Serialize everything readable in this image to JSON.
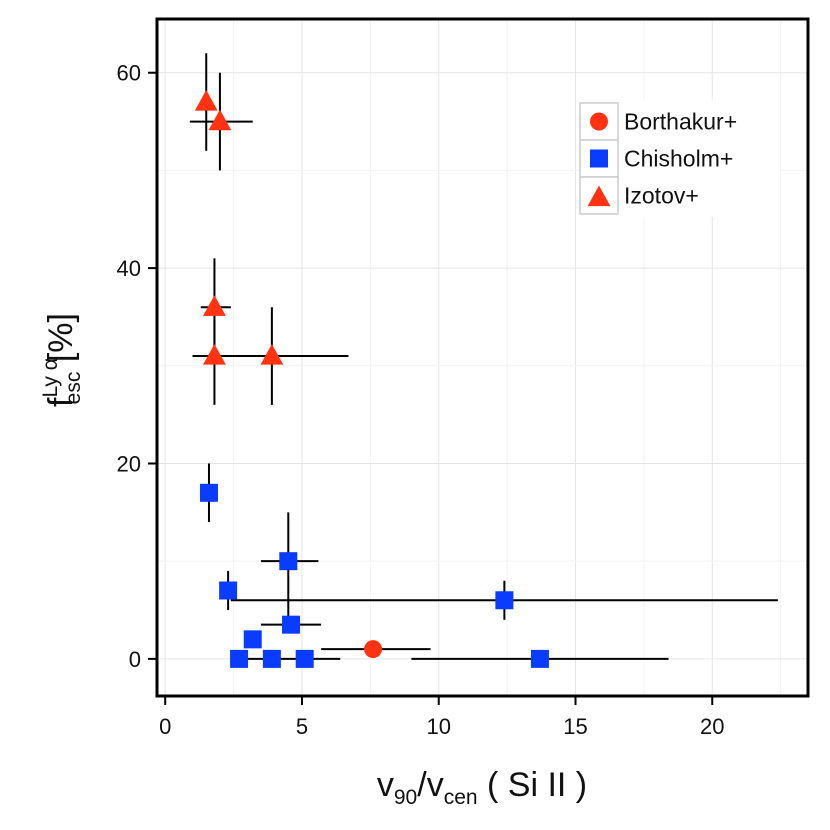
{
  "chart_data": {
    "type": "scatter",
    "title": "",
    "xlabel": {
      "parts": [
        {
          "text": "v",
          "kind": "base"
        },
        {
          "text": "90",
          "kind": "sub"
        },
        {
          "text": "/",
          "kind": "base"
        },
        {
          "text": "v",
          "kind": "base"
        },
        {
          "text": "cen",
          "kind": "sub"
        },
        {
          "text": " ( Si II )",
          "kind": "base"
        }
      ]
    },
    "ylabel": {
      "parts": [
        {
          "text": "f",
          "kind": "base"
        },
        {
          "text": "Ly α",
          "kind": "sup"
        },
        {
          "text": "esc",
          "kind": "sub"
        },
        {
          "text": " [%]",
          "kind": "base"
        }
      ]
    },
    "xlim": [
      -0.3,
      23.5
    ],
    "ylim": [
      -3.8,
      65.5
    ],
    "x_ticks": [
      0,
      5,
      10,
      15,
      20
    ],
    "y_ticks": [
      0,
      20,
      40,
      60
    ],
    "grid": true,
    "legend_position": "top-right",
    "series": [
      {
        "name": "Borthakur+",
        "marker": "circle",
        "color": "#ff3311",
        "points": [
          {
            "x": 7.6,
            "y": 1.0,
            "xerr": [
              5.7,
              9.7
            ],
            "yerr": null
          }
        ]
      },
      {
        "name": "Chisholm+",
        "marker": "square",
        "color": "#0a3cff",
        "points": [
          {
            "x": 1.6,
            "y": 17.0,
            "xerr": null,
            "yerr": [
              14.0,
              20.0
            ]
          },
          {
            "x": 2.3,
            "y": 7.0,
            "xerr": [
              2.0,
              2.4
            ],
            "yerr": [
              5.0,
              9.0
            ]
          },
          {
            "x": 4.5,
            "y": 10.0,
            "xerr": [
              3.5,
              5.6
            ],
            "yerr": [
              4.0,
              15.0
            ]
          },
          {
            "x": 12.4,
            "y": 6.0,
            "xerr": [
              2.4,
              22.4
            ],
            "yerr": [
              4.0,
              8.0
            ]
          },
          {
            "x": 3.2,
            "y": 2.0,
            "xerr": null,
            "yerr": null
          },
          {
            "x": 4.6,
            "y": 3.5,
            "xerr": [
              3.5,
              5.7
            ],
            "yerr": null
          },
          {
            "x": 2.7,
            "y": 0.0,
            "xerr": null,
            "yerr": null
          },
          {
            "x": 3.9,
            "y": 0.0,
            "xerr": [
              2.7,
              6.4
            ],
            "yerr": null
          },
          {
            "x": 5.1,
            "y": 0.0,
            "xerr": null,
            "yerr": null
          },
          {
            "x": 13.7,
            "y": 0.0,
            "xerr": [
              9.0,
              18.4
            ],
            "yerr": null
          }
        ]
      },
      {
        "name": "Izotov+",
        "marker": "triangle",
        "color": "#ff3311",
        "points": [
          {
            "x": 1.5,
            "y": 57.0,
            "xerr": null,
            "yerr": [
              52.0,
              62.0
            ]
          },
          {
            "x": 2.0,
            "y": 55.0,
            "xerr": [
              0.9,
              3.2
            ],
            "yerr": [
              50.0,
              60.0
            ]
          },
          {
            "x": 1.8,
            "y": 36.0,
            "xerr": [
              1.3,
              2.4
            ],
            "yerr": [
              31.0,
              41.0
            ]
          },
          {
            "x": 1.8,
            "y": 31.0,
            "xerr": [
              1.0,
              2.6
            ],
            "yerr": [
              26.0,
              36.0
            ]
          },
          {
            "x": 3.9,
            "y": 31.0,
            "xerr": [
              1.0,
              6.7
            ],
            "yerr": [
              26.0,
              36.0
            ]
          }
        ]
      }
    ]
  }
}
